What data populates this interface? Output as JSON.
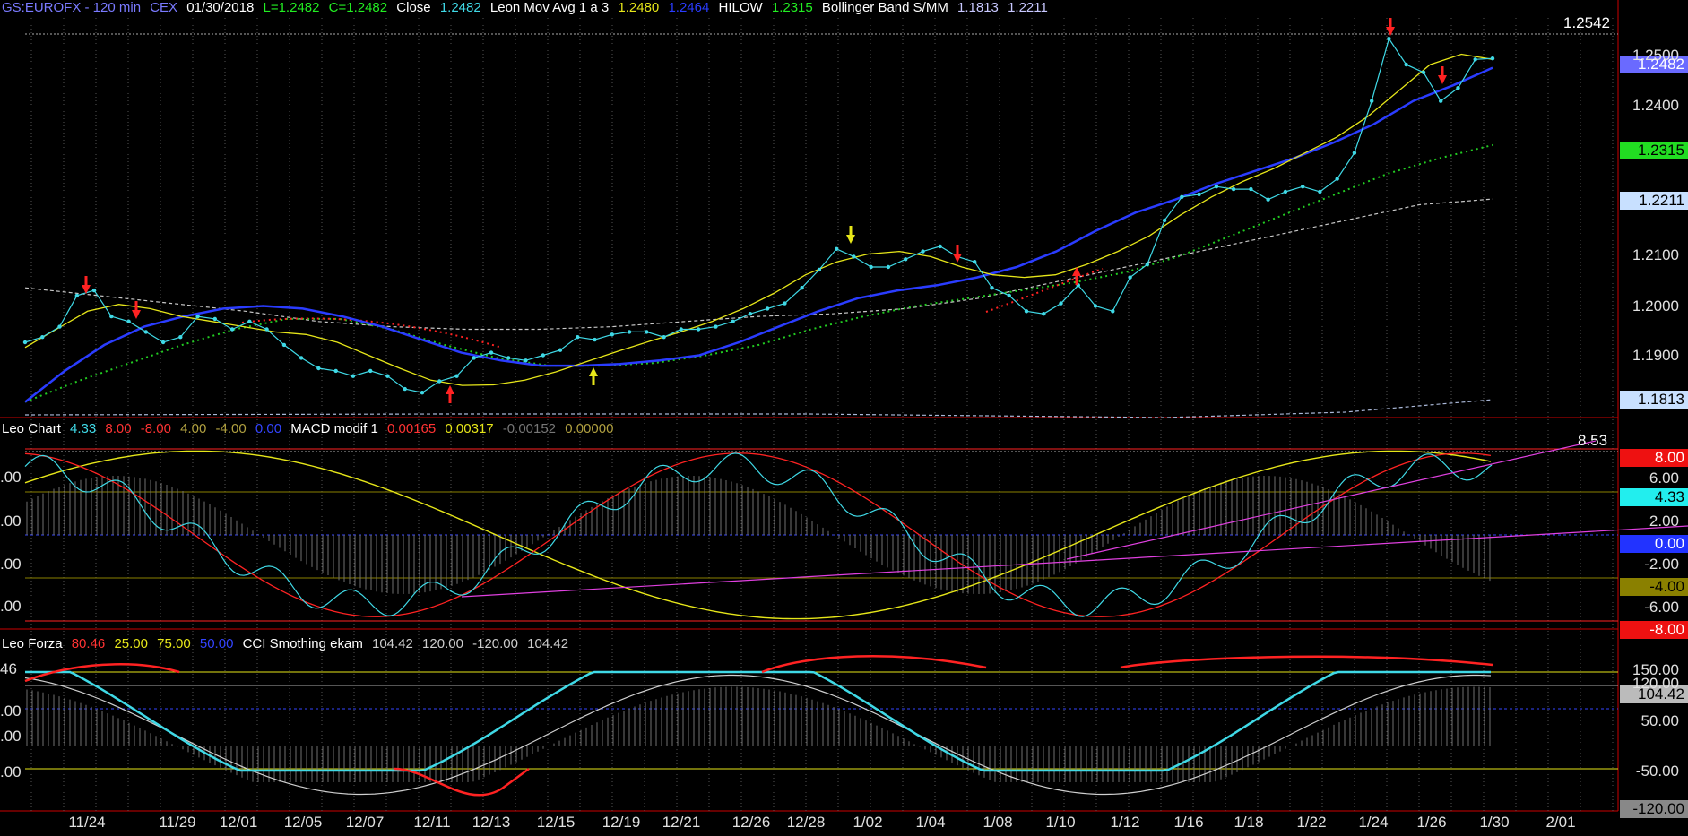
{
  "header": {
    "symbol": "GS:EUROFX - 120 min",
    "exchange": "CEX",
    "date": "01/30/2018",
    "low": "L=1.2482",
    "close_eq": "C=1.2482",
    "close_label": "Close",
    "close_val": "1.2482",
    "ma_label": "Leon Mov Avg 1 a 3",
    "ma_val1": "1.2480",
    "ma_val2": "1.2464",
    "hilow_label": "HILOW",
    "hilow_val": "1.2315",
    "bb_label": "Bollinger Band S/MM",
    "bb_val1": "1.1813",
    "bb_val2": "1.2211"
  },
  "macd_header": {
    "label": "Leo Chart",
    "v1": "4.33",
    "v2": "8.00",
    "v3": "-8.00",
    "v4": "4.00",
    "v5": "-4.00",
    "v6": "0.00",
    "macd_label": "MACD modif 1",
    "m1": "0.00165",
    "m2": "0.00317",
    "m3": "-0.00152",
    "m4": "0.00000"
  },
  "forza_header": {
    "label": "Leo Forza",
    "v1": "80.46",
    "v2": "25.00",
    "v3": "75.00",
    "v4": "50.00",
    "cci_label": "CCI Smothing ekam",
    "c1": "104.42",
    "c2": "120.00",
    "c3": "-120.00",
    "c4": "104.42"
  },
  "colors": {
    "price": "#3fd9e6",
    "ma_yellow": "#e6e619",
    "ma_blue": "#2a3cff",
    "hilow": "#22cc22",
    "bollinger": "#c8c8c8",
    "red": "#ff2222",
    "magenta": "#e040e0",
    "grid": "#5a5a5a",
    "frame": "#cc0000"
  },
  "price_labels": {
    "high_line": "1.2542",
    "close": "1.2482",
    "hilow": "1.2315",
    "bb_upper": "1.2211",
    "bb_lower": "1.1813"
  },
  "macd_labels": {
    "top": "8.00",
    "cur": "4.33",
    "zero": "0.00",
    "m4": "-4.00",
    "bottom": "-8.00",
    "corner": "8.53"
  },
  "forza_labels": {
    "cur": "104.42",
    "bottom": "-120.00"
  },
  "chart_data": {
    "type": "line",
    "title": "GS:EUROFX - 120 min",
    "x_ticks": [
      "11/24",
      "11/29",
      "12/01",
      "12/05",
      "12/07",
      "12/11",
      "12/13",
      "12/15",
      "12/19",
      "12/21",
      "12/26",
      "12/28",
      "1/02",
      "1/04",
      "1/08",
      "1/10",
      "1/12",
      "1/16",
      "1/18",
      "1/22",
      "1/24",
      "1/26",
      "1/30",
      "2/01"
    ],
    "y_ticks_price": [
      "1.2500",
      "1.2400",
      "1.2100",
      "1.2000",
      "1.1900"
    ],
    "y_ticks_macd_right": [
      "6.00",
      "2.00",
      "-2.00",
      "-6.00"
    ],
    "y_ticks_macd_left": [
      ".00",
      ".00",
      ".00",
      ".00"
    ],
    "y_ticks_forza_right": [
      "150.00",
      "120.00",
      "50.00",
      "-50.00"
    ],
    "y_ticks_forza_left": [
      "46",
      ".00",
      ".00",
      ".00"
    ],
    "ylim_price": [
      1.179,
      1.256
    ],
    "series": [
      {
        "name": "Close",
        "values": [
          1.1935,
          1.1945,
          1.1965,
          1.2025,
          1.2035,
          1.1985,
          1.1975,
          1.1955,
          1.1935,
          1.1945,
          1.1985,
          1.198,
          1.196,
          1.1975,
          1.196,
          1.193,
          1.1905,
          1.1885,
          1.188,
          1.187,
          1.188,
          1.187,
          1.1845,
          1.1838,
          1.186,
          1.187,
          1.1905,
          1.1915,
          1.1905,
          1.19,
          1.191,
          1.192,
          1.1945,
          1.194,
          1.195,
          1.1955,
          1.1955,
          1.1945,
          1.196,
          1.196,
          1.1965,
          1.1975,
          1.199,
          1.2,
          1.201,
          1.204,
          1.2075,
          1.2115,
          1.21,
          1.208,
          1.208,
          1.2095,
          1.211,
          1.212,
          1.21,
          1.209,
          1.204,
          1.2025,
          1.1995,
          1.199,
          1.201,
          1.2045,
          1.2005,
          1.1995,
          1.206,
          1.2085,
          1.217,
          1.2215,
          1.222,
          1.2235,
          1.223,
          1.223,
          1.221,
          1.2225,
          1.2235,
          1.2225,
          1.225,
          1.23,
          1.24,
          1.252,
          1.247,
          1.2455,
          1.24,
          1.2425,
          1.248,
          1.2482
        ]
      },
      {
        "name": "Leon Mov Avg 1 a 3",
        "values": [
          1.1925,
          1.196,
          1.1995,
          1.2008,
          1.2,
          1.1985,
          1.1975,
          1.1965,
          1.1955,
          1.195,
          1.1935,
          1.191,
          1.1885,
          1.1862,
          1.1852,
          1.1853,
          1.1862,
          1.1878,
          1.1898,
          1.1918,
          1.1937,
          1.1955,
          1.1975,
          1.2,
          1.203,
          1.2065,
          1.209,
          1.2105,
          1.211,
          1.21,
          1.208,
          1.2065,
          1.206,
          1.2065,
          1.2085,
          1.211,
          1.214,
          1.218,
          1.2215,
          1.2245,
          1.227,
          1.23,
          1.233,
          1.237,
          1.242,
          1.247,
          1.249,
          1.248
        ]
      },
      {
        "name": "Leon Mov Avg (blue)",
        "values": [
          1.182,
          1.188,
          1.193,
          1.1965,
          1.1985,
          1.2,
          1.2005,
          1.2,
          1.1985,
          1.1965,
          1.194,
          1.1915,
          1.19,
          1.189,
          1.189,
          1.1893,
          1.19,
          1.191,
          1.1935,
          1.1965,
          1.1995,
          1.202,
          1.2035,
          1.2045,
          1.206,
          1.208,
          1.211,
          1.215,
          1.2185,
          1.221,
          1.224,
          1.2265,
          1.229,
          1.232,
          1.2355,
          1.24,
          1.243,
          1.2464
        ]
      },
      {
        "name": "HILOW",
        "values": [
          1.182,
          1.186,
          1.1895,
          1.193,
          1.196,
          1.198,
          1.198,
          1.196,
          1.193,
          1.1905,
          1.189,
          1.189,
          1.1895,
          1.191,
          1.193,
          1.196,
          1.1985,
          1.2005,
          1.202,
          1.2035,
          1.205,
          1.207,
          1.21,
          1.214,
          1.218,
          1.222,
          1.226,
          1.229,
          1.2315
        ]
      },
      {
        "name": "Bollinger Band S/MM",
        "values": [
          1.204,
          1.2025,
          1.201,
          1.1995,
          1.1975,
          1.1965,
          1.196,
          1.196,
          1.1965,
          1.1975,
          1.1985,
          1.199,
          1.2,
          1.202,
          1.205,
          1.208,
          1.211,
          1.214,
          1.217,
          1.22,
          1.2211
        ]
      }
    ]
  }
}
